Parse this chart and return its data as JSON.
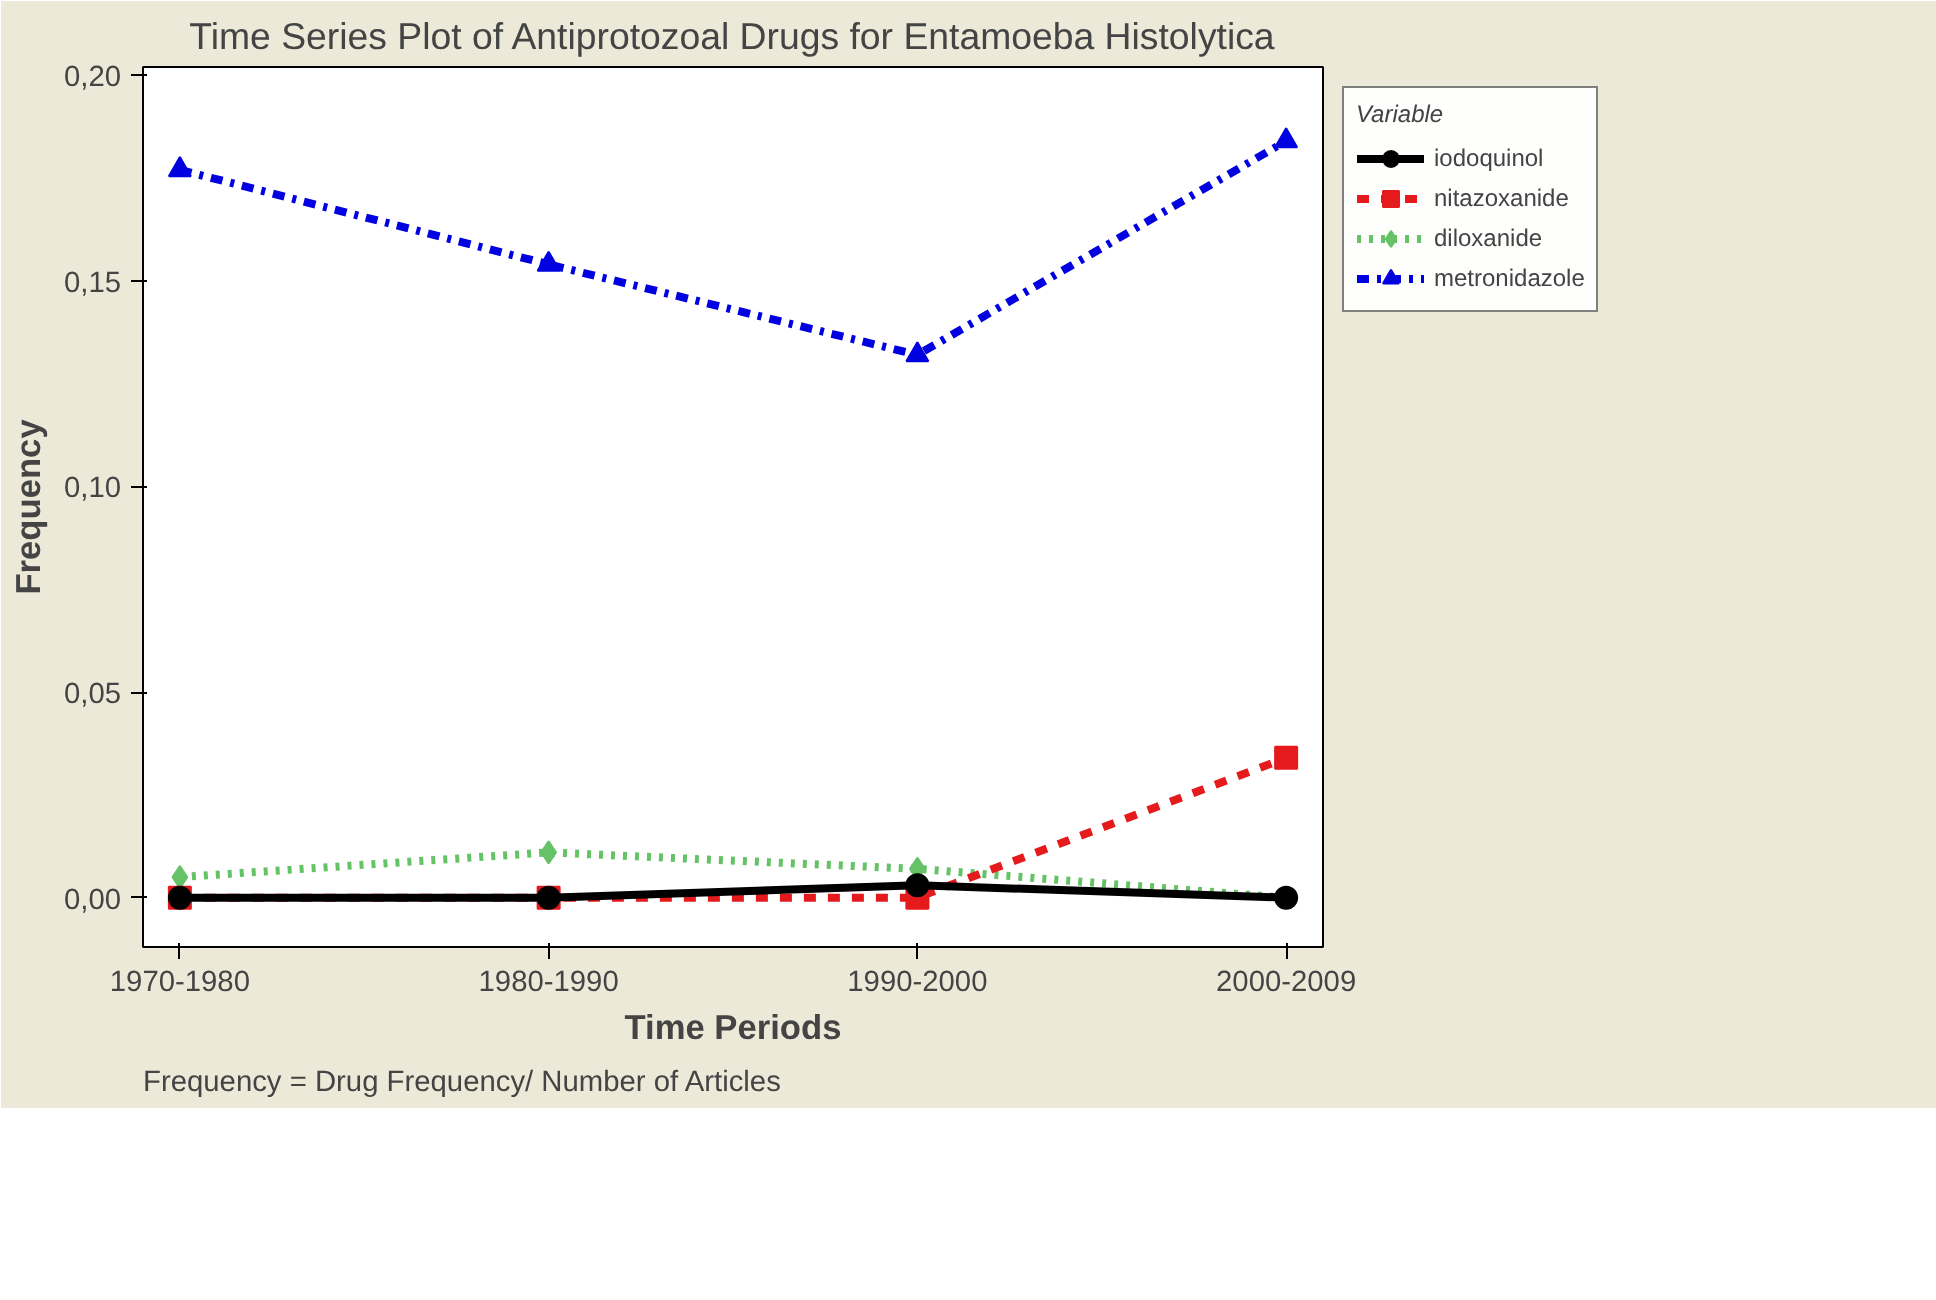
{
  "chart_data": {
    "type": "line",
    "title": "Time Series Plot of Antiprotozoal Drugs for Entamoeba Histolytica",
    "xlabel": "Time Periods",
    "ylabel": "Frequency",
    "legend_title": "Variable",
    "categories": [
      "1970-1980",
      "1980-1990",
      "1990-2000",
      "2000-2009"
    ],
    "series": [
      {
        "name": "iodoquinol",
        "color": "#000000",
        "values": [
          0.0,
          0.0,
          0.003,
          0.0
        ],
        "marker": "circle",
        "line_style": "solid"
      },
      {
        "name": "nitazoxanide",
        "color": "#e41a1c",
        "values": [
          0.0,
          0.0,
          0.0,
          0.034
        ],
        "marker": "square",
        "line_style": "dashed"
      },
      {
        "name": "diloxanide",
        "color": "#66c266",
        "values": [
          0.005,
          0.011,
          0.007,
          0.0
        ],
        "marker": "diamond",
        "line_style": "dotted"
      },
      {
        "name": "metronidazole",
        "color": "#0000e0",
        "values": [
          0.177,
          0.154,
          0.132,
          0.184
        ],
        "marker": "triangle",
        "line_style": "dashdot"
      }
    ],
    "ylim": [
      -0.012,
      0.202
    ],
    "yticks": [
      {
        "value": 0.0,
        "label": "0,00"
      },
      {
        "value": 0.05,
        "label": "0,05"
      },
      {
        "value": 0.1,
        "label": "0,10"
      },
      {
        "value": 0.15,
        "label": "0,15"
      },
      {
        "value": 0.2,
        "label": "0,20"
      }
    ],
    "grid": false,
    "legend": "right",
    "annotations": [
      "Frequency  = Drug Frequency/ Number of Articles"
    ]
  }
}
